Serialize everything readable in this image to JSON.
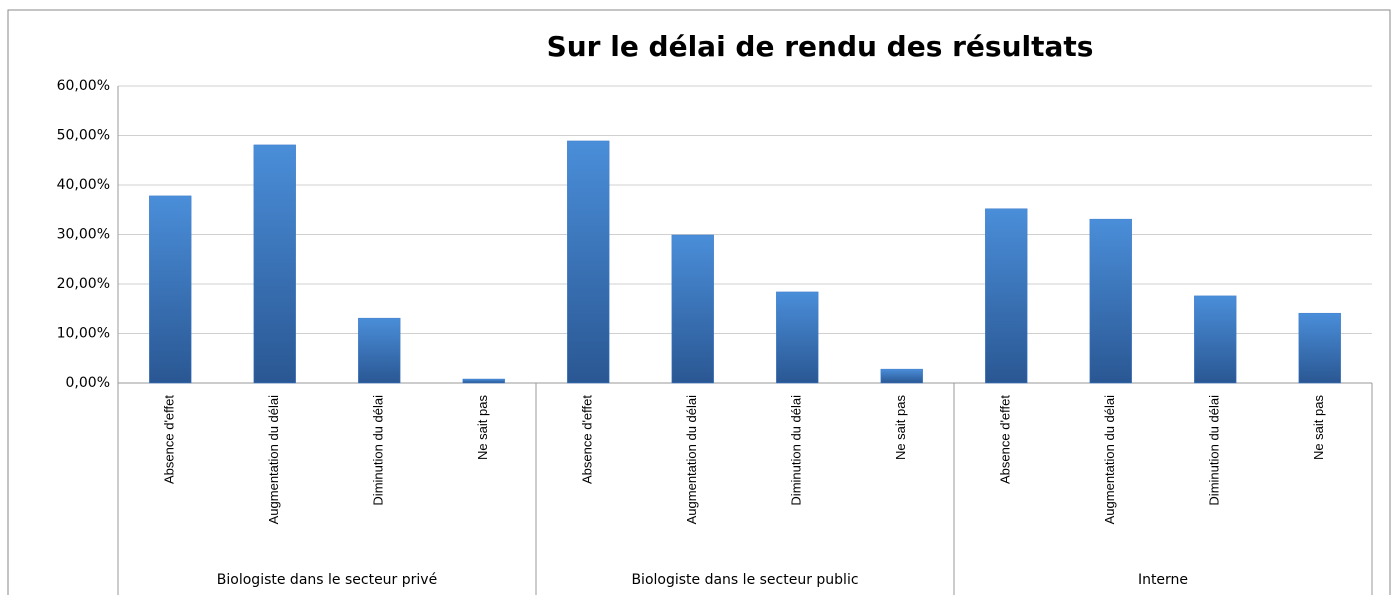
{
  "chart_data": {
    "type": "bar",
    "title": "Sur le délai de rendu des résultats",
    "groups": [
      {
        "name": "Biologiste dans le secteur privé",
        "categories": [
          "Absence d'effet",
          "Augmentation du délai",
          "Diminution du délai",
          "Ne sait pas"
        ],
        "values": [
          37.8,
          48.1,
          13.1,
          0.8
        ]
      },
      {
        "name": "Biologiste dans le secteur public",
        "categories": [
          "Absence d'effet",
          "Augmentation du délai",
          "Diminution du délai",
          "Ne sait pas"
        ],
        "values": [
          48.9,
          29.9,
          18.4,
          2.8
        ]
      },
      {
        "name": "Interne",
        "categories": [
          "Absence d'effet",
          "Augmentation du délai",
          "Diminution du délai",
          "Ne sait pas"
        ],
        "values": [
          35.2,
          33.1,
          17.6,
          14.1
        ]
      }
    ],
    "color": "#3f7ccb",
    "ylim": [
      0,
      60
    ],
    "yticks": [
      {
        "value": 0,
        "label": "0,00%"
      },
      {
        "value": 10,
        "label": "10,00%"
      },
      {
        "value": 20,
        "label": "20,00%"
      },
      {
        "value": 30,
        "label": "30,00%"
      },
      {
        "value": 40,
        "label": "40,00%"
      },
      {
        "value": 50,
        "label": "50,00%"
      },
      {
        "value": 60,
        "label": "60,00%"
      }
    ],
    "grid": true
  }
}
